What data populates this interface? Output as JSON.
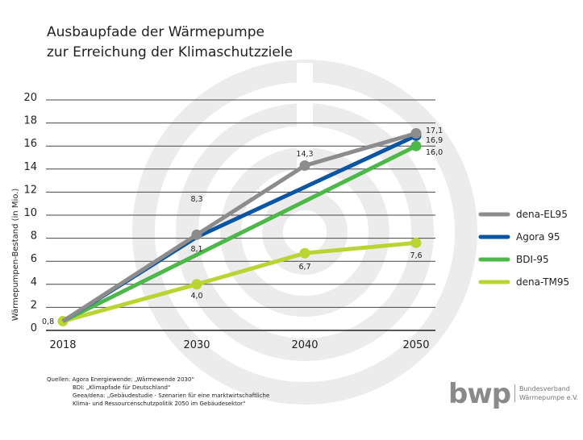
{
  "title_line1": "Ausbaupfade der Wärmepumpe",
  "title_line2": "zur Erreichung der Klimaschutzziele",
  "chart_data": {
    "type": "line",
    "ylabel": "Wärmepumpen-Bestand (in Mio.)",
    "xlabel": "",
    "x_ticks": [
      "2018",
      "2030",
      "2040",
      "2050"
    ],
    "y_ticks": [
      "0",
      "2",
      "4",
      "6",
      "8",
      "10",
      "12",
      "14",
      "16",
      "18",
      "20"
    ],
    "ylim": [
      0,
      20
    ],
    "grid": true,
    "legend_position": "right",
    "series": [
      {
        "name": "dena-EL95",
        "color": "#8c8c8c",
        "points": [
          [
            2018,
            0.8
          ],
          [
            2030,
            8.3
          ],
          [
            2040,
            14.3
          ],
          [
            2050,
            17.1
          ]
        ],
        "labels": {
          "2030": "8,3",
          "2040": "14,3",
          "2050": "17,1"
        },
        "markers": [
          2030,
          2040,
          2050
        ]
      },
      {
        "name": "Agora 95",
        "color": "#0b55a5",
        "points": [
          [
            2018,
            0.8
          ],
          [
            2030,
            8.1
          ],
          [
            2050,
            16.9
          ]
        ],
        "labels": {
          "2030": "8,1",
          "2050": "16,9"
        },
        "markers": [
          2050
        ]
      },
      {
        "name": "BDI-95",
        "color": "#4cb848",
        "points": [
          [
            2018,
            0.8
          ],
          [
            2050,
            16.0
          ]
        ],
        "labels": {
          "2050": "16,0"
        },
        "markers": [
          2050
        ]
      },
      {
        "name": "dena-TM95",
        "color": "#b9d534",
        "points": [
          [
            2018,
            0.8
          ],
          [
            2030,
            4.0
          ],
          [
            2040,
            6.7
          ],
          [
            2050,
            7.6
          ]
        ],
        "labels": {
          "2018": "0,8",
          "2030": "4,0",
          "2040": "6,7",
          "2050": "7,6"
        },
        "markers": [
          2018,
          2030,
          2040,
          2050
        ]
      }
    ]
  },
  "sources": [
    "Quellen: Agora Energiewende: „Wärmewende 2030“",
    "BDI: „Klimapfade für Deutschland“",
    "Geea/dena: „Gebäudestudie - Szenarien für eine marktwirtschaftliche",
    "Klima- und Ressourcenschutzpolitik 2050 im Gebäudesektor“"
  ],
  "logo": {
    "word": "bwp",
    "line1": "Bundesverband",
    "line2": "Wärmepumpe e.V."
  }
}
